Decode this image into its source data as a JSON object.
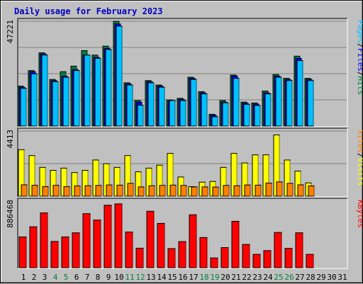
{
  "chart_data": {
    "type": "bar",
    "title": "Daily usage for February 2023",
    "categories": [
      "1",
      "2",
      "3",
      "4",
      "5",
      "6",
      "7",
      "8",
      "9",
      "10",
      "11",
      "12",
      "13",
      "14",
      "15",
      "16",
      "17",
      "18",
      "19",
      "20",
      "21",
      "22",
      "23",
      "24",
      "25",
      "26",
      "27",
      "28",
      "29",
      "30",
      "31"
    ],
    "weekend_days": [
      4,
      5,
      11,
      12,
      18,
      19,
      25,
      26
    ],
    "colors": {
      "hits": "#008040",
      "files": "#0000ff",
      "pages": "#00c0ff",
      "visits": "#ffff00",
      "sites": "#ff8000",
      "kbytes": "#ff0000",
      "title": "#0000c0",
      "weekend_label": "#008040",
      "weekday_label": "#000000"
    },
    "panels": [
      {
        "id": "top",
        "ymax_label": "47221",
        "ymax": 47221,
        "gridlines": 4,
        "legend": [
          {
            "text": "Pages",
            "color": "#00c0ff"
          },
          {
            "text": "/",
            "color": "#000000"
          },
          {
            "text": "Files",
            "color": "#0000ff"
          },
          {
            "text": "/",
            "color": "#000000"
          },
          {
            "text": "Hits",
            "color": "#008040"
          }
        ],
        "series": [
          {
            "name": "Hits",
            "color": "#008040",
            "values": [
              18000,
              25000,
              33000,
              21000,
              24500,
              27000,
              34000,
              32000,
              36000,
              47200,
              19500,
              11500,
              20500,
              18500,
              11800,
              12500,
              22000,
              15500,
              5300,
              11500,
              23000,
              10800,
              10400,
              15800,
              23200,
              21500,
              31500,
              21500,
              null,
              null,
              null
            ]
          },
          {
            "name": "Files",
            "color": "#0000ff",
            "values": [
              17500,
              24500,
              32500,
              20500,
              22500,
              25500,
              32000,
              31000,
              35000,
              46000,
              19000,
              10800,
              20000,
              18000,
              11200,
              12000,
              21500,
              15000,
              4900,
              10800,
              22500,
              10300,
              9900,
              15000,
              22500,
              21000,
              30500,
              21000,
              null,
              null,
              null
            ]
          },
          {
            "name": "Pages",
            "color": "#00c0ff",
            "values": [
              17000,
              23500,
              32000,
              20000,
              22000,
              25000,
              32000,
              30500,
              34500,
              45000,
              18500,
              9400,
              19500,
              17500,
              11500,
              11500,
              21000,
              14500,
              4200,
              10500,
              21500,
              9800,
              9300,
              14500,
              22000,
              20500,
              29500,
              20500,
              null,
              null,
              null
            ]
          }
        ]
      },
      {
        "id": "middle",
        "ymax_label": "4413",
        "ymax": 4413,
        "gridlines": 2,
        "legend": [
          {
            "text": "Sites",
            "color": "#ff8000"
          },
          {
            "text": "/",
            "color": "#000000"
          },
          {
            "text": "Visits",
            "color": "#ffff00"
          }
        ],
        "series": [
          {
            "name": "Visits",
            "color": "#ffff00",
            "values": [
              3150,
              2750,
              1950,
              1750,
              1900,
              1600,
              1750,
              2450,
              2200,
              1950,
              2750,
              1650,
              1900,
              2100,
              2900,
              1300,
              650,
              950,
              1000,
              1950,
              2900,
              2250,
              2800,
              2800,
              4150,
              2450,
              1700,
              900,
              null,
              null,
              null
            ]
          },
          {
            "name": "Sites",
            "color": "#ff8000",
            "values": [
              770,
              740,
              650,
              740,
              650,
              700,
              710,
              730,
              760,
              750,
              870,
              630,
              710,
              730,
              750,
              730,
              630,
              630,
              620,
              730,
              710,
              760,
              750,
              890,
              970,
              870,
              770,
              700,
              null,
              null,
              null
            ]
          }
        ]
      },
      {
        "id": "bottom",
        "ymax_label": "886468",
        "ymax": 886468,
        "gridlines": 0,
        "legend": [
          {
            "text": "KBytes",
            "color": "#ff0000"
          }
        ],
        "series": [
          {
            "name": "KBytes",
            "color": "#ff0000",
            "values": [
              410000,
              545000,
              730000,
              350000,
              410000,
              465000,
              720000,
              635000,
              832000,
              850000,
              475000,
              260000,
              752000,
              590000,
              255000,
              348000,
              705000,
              402000,
              130000,
              268000,
              618000,
              310000,
              178000,
              228000,
              470000,
              258000,
              465000,
              178000,
              null,
              null,
              null
            ]
          }
        ]
      }
    ]
  }
}
